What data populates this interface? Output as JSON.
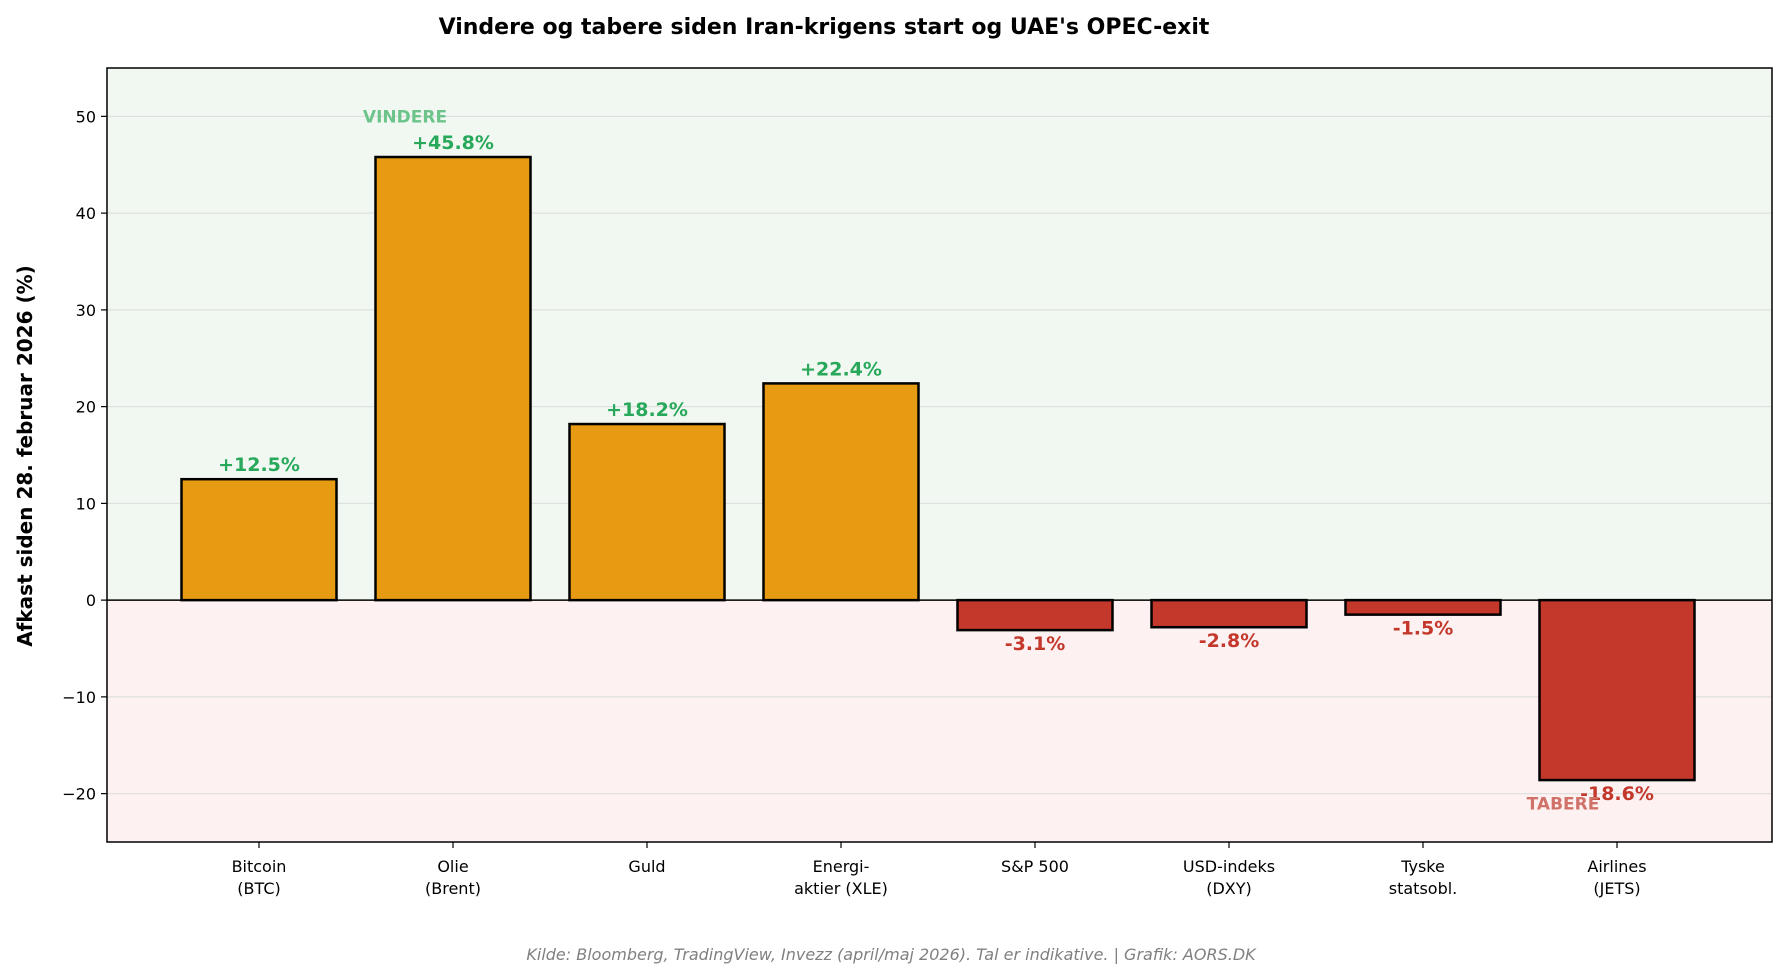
{
  "chart_data": {
    "type": "bar",
    "title": "Vindere og tabere siden Iran-krigens start og UAE's OPEC-exit",
    "ylabel": "Afkast siden 28. februar 2026 (%)",
    "xlabel": "",
    "ylim": [
      -25,
      55
    ],
    "yticks": [
      -20,
      -10,
      0,
      10,
      20,
      30,
      40,
      50
    ],
    "grid": true,
    "categories": [
      [
        "Bitcoin",
        "(BTC)"
      ],
      [
        "Olie",
        "(Brent)"
      ],
      [
        "Guld"
      ],
      [
        "Energi-",
        "aktier (XLE)"
      ],
      [
        "S&P 500"
      ],
      [
        "USD-indeks",
        "(DXY)"
      ],
      [
        "Tyske",
        "statsobl."
      ],
      [
        "Airlines",
        "(JETS)"
      ]
    ],
    "values": [
      12.5,
      45.8,
      18.2,
      22.4,
      -3.1,
      -2.8,
      -1.5,
      -18.6
    ],
    "data_labels": [
      "+12.5%",
      "+45.8%",
      "+18.2%",
      "+22.4%",
      "-3.1%",
      "-2.8%",
      "-1.5%",
      "-18.6%"
    ],
    "zones": {
      "positive": {
        "label": "VINDERE",
        "label_y": 50,
        "label_category_index": 1,
        "bg_color": "#f1f8f2",
        "label_color": "#6cc48b"
      },
      "negative": {
        "label": "TABERE",
        "label_y": -21,
        "label_category_index": 7,
        "bg_color": "#fdf1f1",
        "label_color": "#d0726a"
      }
    },
    "colors": {
      "positive_bar": "#e69b12",
      "negative_bar": "#c4372b",
      "positive_label": "#27a85a",
      "negative_label": "#c4372b",
      "bar_edge": "#000000",
      "grid": "#e0e0e0"
    }
  },
  "footer": {
    "source": "Kilde: Bloomberg, TradingView, Invezz (april/maj 2026). Tal er indikative. | Grafik: AORS.DK"
  }
}
